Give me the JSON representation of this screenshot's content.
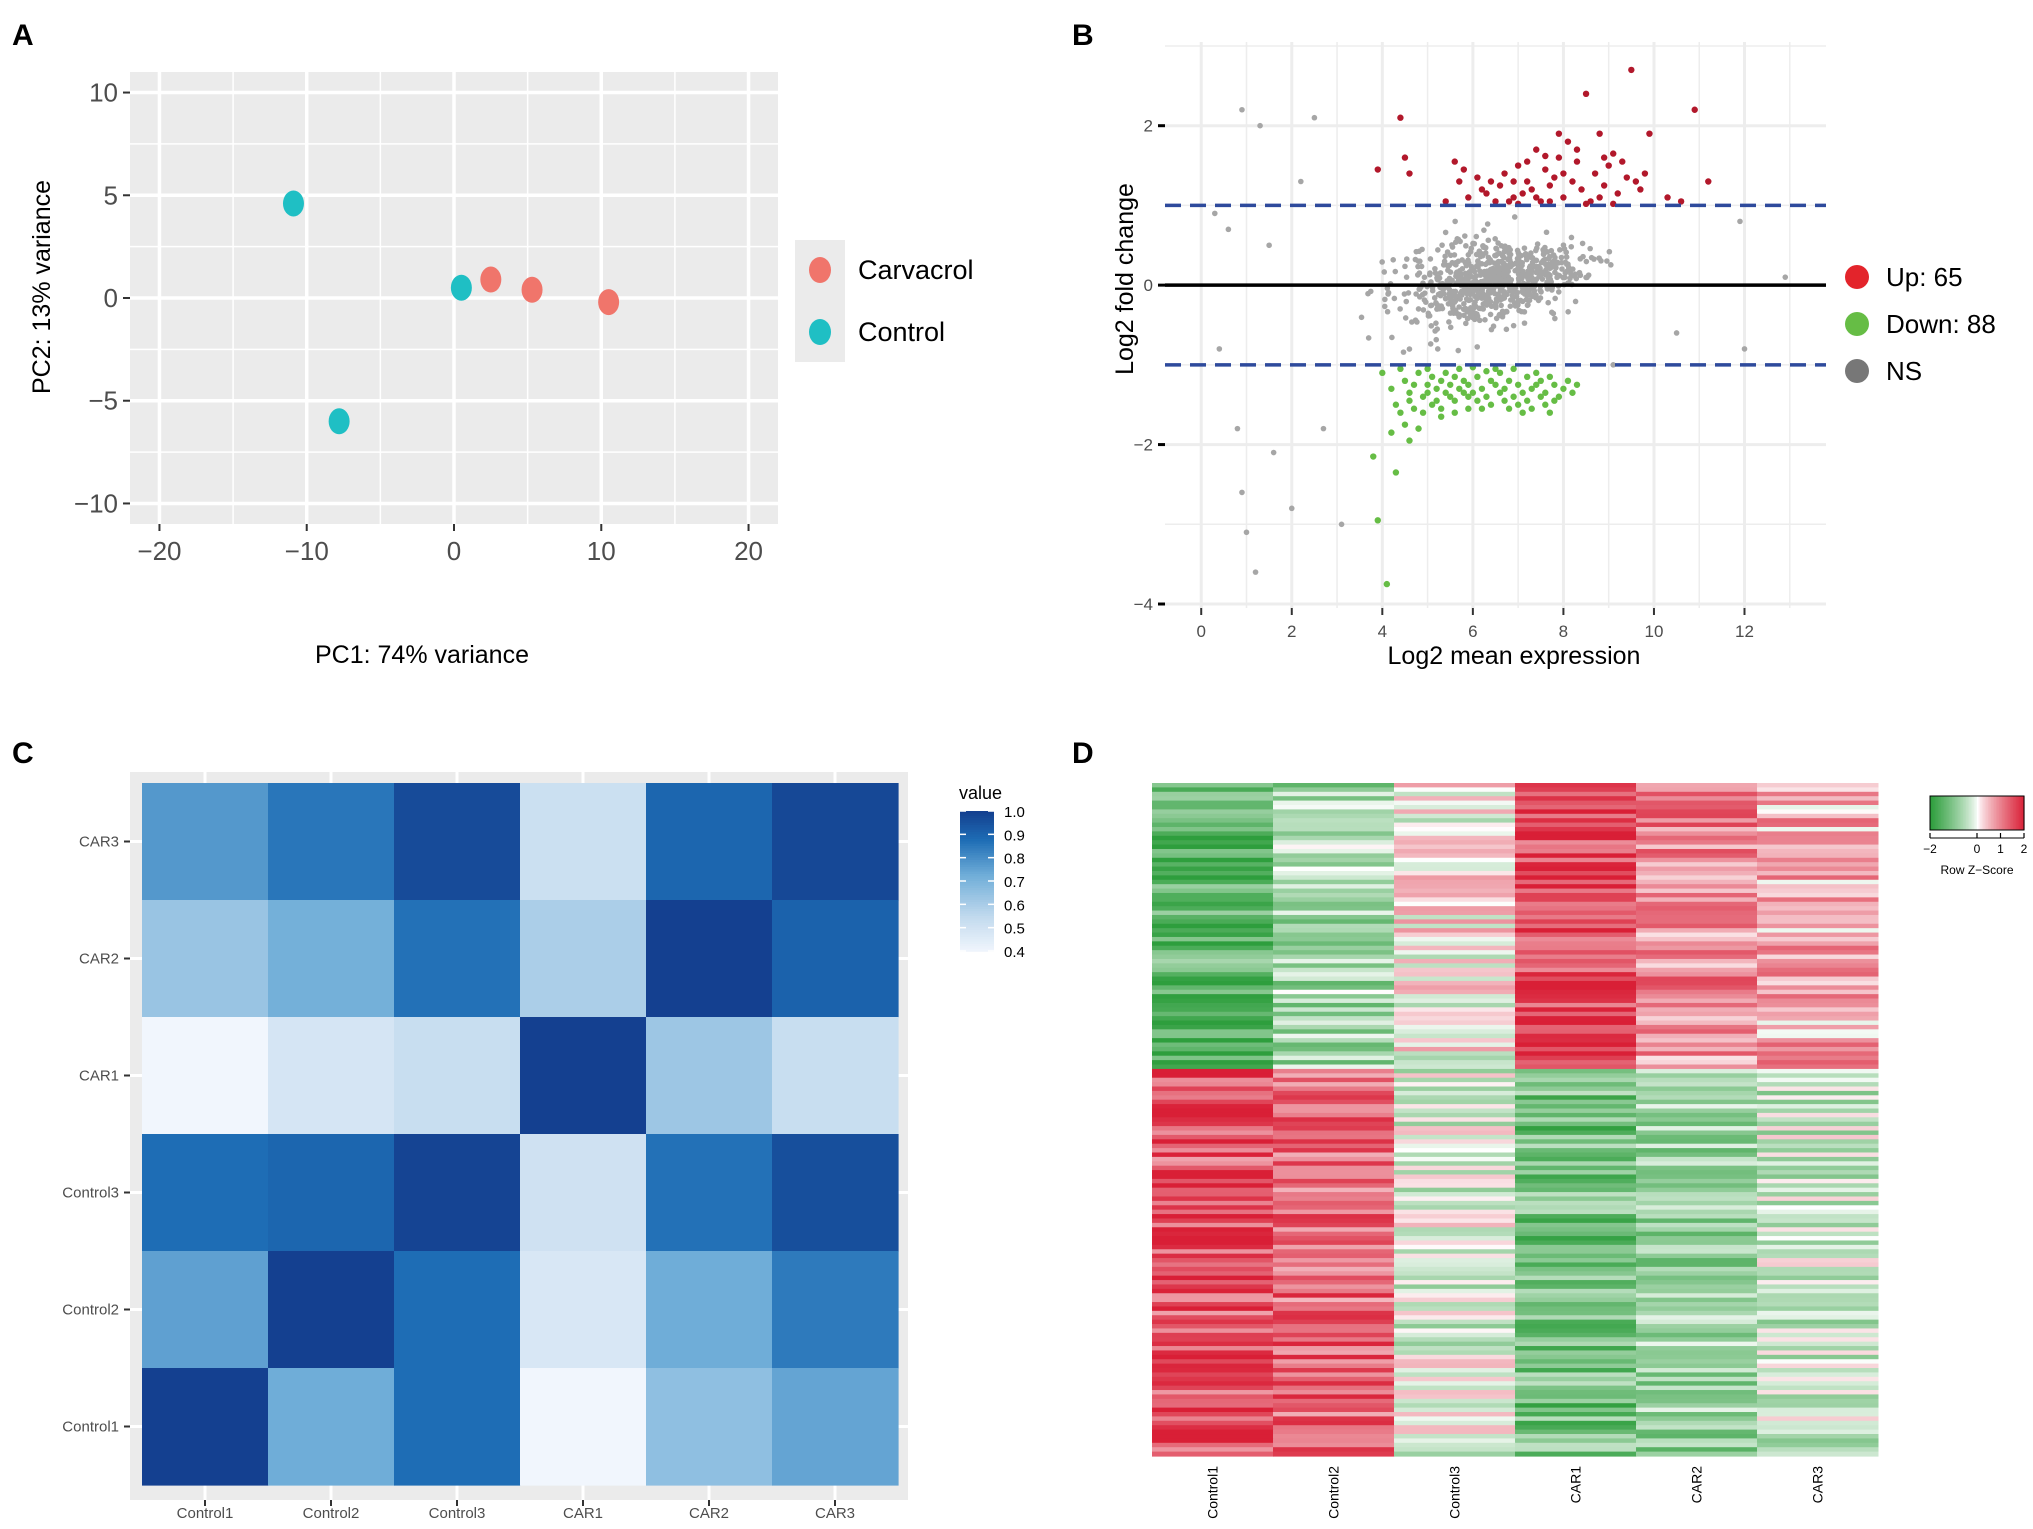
{
  "panel_labels": [
    "A",
    "B",
    "C",
    "D"
  ],
  "colors": {
    "carvacrol": "#F0756B",
    "control": "#1FBFC4",
    "up": "#B2182B",
    "up_legend": "#E3242B",
    "down": "#66BD45",
    "ns": "#A6A6A6",
    "ns_legend": "#777777",
    "threshold": "#2E4A9C",
    "panel_bg": "#EBEBEB",
    "heat_green": "#2E9E3D",
    "heat_red": "#D91F36"
  },
  "chart_data": [
    {
      "id": "A",
      "type": "scatter",
      "title": "",
      "xlabel": "PC1: 74% variance",
      "ylabel": "PC2: 13% variance",
      "xlim": [
        -22,
        22
      ],
      "ylim": [
        -11,
        11
      ],
      "xticks": [
        -20,
        -10,
        0,
        10,
        20
      ],
      "xtick_labels": [
        "−20",
        "−10",
        "0",
        "10",
        "20"
      ],
      "yticks": [
        10,
        5,
        0,
        -5,
        -10
      ],
      "ytick_labels": [
        "10",
        "5",
        "0",
        "−5",
        "−10"
      ],
      "legend": "right",
      "series": [
        {
          "name": "Carvacrol",
          "points": [
            [
              2.5,
              0.9
            ],
            [
              5.3,
              0.4
            ],
            [
              10.5,
              -0.2
            ]
          ]
        },
        {
          "name": "Control",
          "points": [
            [
              -10.9,
              4.6
            ],
            [
              -7.8,
              -6.0
            ],
            [
              0.5,
              0.5
            ]
          ]
        }
      ]
    },
    {
      "id": "B",
      "type": "scatter",
      "title": "",
      "xlabel": "Log2 mean expression",
      "ylabel": "Log2 fold change",
      "xlim": [
        -0.8,
        13.8
      ],
      "ylim": [
        -4.05,
        3.05
      ],
      "xticks": [
        0,
        2,
        4,
        6,
        8,
        10,
        12
      ],
      "xtick_labels": [
        "0",
        "2",
        "4",
        "6",
        "8",
        "10",
        "12"
      ],
      "yticks": [
        2,
        0,
        -2,
        -4
      ],
      "ytick_labels": [
        "2",
        "0",
        "−2",
        "−4"
      ],
      "thresholds": [
        1,
        -1
      ],
      "center_line": 0,
      "legend": "right",
      "legend_entries": [
        "Up: 65",
        "Down: 88",
        "NS"
      ],
      "up_count": 65,
      "down_count": 88,
      "series": [
        {
          "name": "Up",
          "points": [
            [
              9.5,
              2.7
            ],
            [
              8.5,
              2.4
            ],
            [
              10.9,
              2.2
            ],
            [
              4.4,
              2.1
            ],
            [
              9.9,
              1.9
            ],
            [
              8.8,
              1.9
            ],
            [
              7.4,
              1.7
            ],
            [
              8.1,
              1.8
            ],
            [
              7.9,
              1.6
            ],
            [
              9.1,
              1.65
            ],
            [
              7.0,
              1.5
            ],
            [
              7.6,
              1.45
            ],
            [
              8.3,
              1.55
            ],
            [
              4.5,
              1.6
            ],
            [
              5.6,
              1.55
            ],
            [
              9.4,
              1.35
            ],
            [
              8.7,
              1.4
            ],
            [
              7.2,
              1.3
            ],
            [
              7.8,
              1.35
            ],
            [
              8.9,
              1.25
            ],
            [
              6.6,
              1.25
            ],
            [
              5.7,
              1.3
            ],
            [
              6.2,
              1.2
            ],
            [
              7.1,
              1.15
            ],
            [
              8.4,
              1.2
            ],
            [
              9.6,
              1.3
            ],
            [
              11.2,
              1.3
            ],
            [
              4.6,
              1.4
            ],
            [
              3.9,
              1.45
            ],
            [
              6.9,
              1.1
            ],
            [
              7.5,
              1.05
            ],
            [
              8.0,
              1.1
            ],
            [
              8.6,
              1.05
            ],
            [
              9.2,
              1.15
            ],
            [
              10.3,
              1.1
            ],
            [
              6.8,
              1.05
            ],
            [
              7.3,
              1.2
            ],
            [
              5.9,
              1.1
            ],
            [
              8.2,
              1.3
            ],
            [
              9.0,
              1.5
            ],
            [
              7.7,
              1.25
            ],
            [
              6.5,
              1.05
            ],
            [
              7.0,
              1.02
            ],
            [
              8.5,
              1.02
            ],
            [
              10.6,
              1.05
            ],
            [
              5.4,
              1.05
            ],
            [
              9.8,
              1.4
            ],
            [
              6.1,
              1.35
            ],
            [
              7.9,
              1.9
            ],
            [
              8.3,
              1.7
            ],
            [
              7.6,
              1.62
            ],
            [
              6.7,
              1.4
            ],
            [
              9.3,
              1.55
            ],
            [
              8.8,
              1.1
            ],
            [
              7.4,
              1.1
            ],
            [
              6.3,
              1.15
            ],
            [
              5.8,
              1.45
            ],
            [
              9.7,
              1.2
            ],
            [
              7.2,
              1.55
            ],
            [
              8.0,
              1.4
            ],
            [
              8.9,
              1.6
            ],
            [
              6.9,
              1.3
            ],
            [
              7.7,
              1.05
            ],
            [
              9.1,
              1.02
            ],
            [
              6.4,
              1.3
            ]
          ]
        },
        {
          "name": "Down",
          "points": [
            [
              4.1,
              -3.75
            ],
            [
              3.9,
              -2.95
            ],
            [
              4.3,
              -2.35
            ],
            [
              3.8,
              -2.15
            ],
            [
              4.6,
              -1.95
            ],
            [
              4.2,
              -1.85
            ],
            [
              4.5,
              -1.75
            ],
            [
              4.8,
              -1.8
            ],
            [
              4.4,
              -1.6
            ],
            [
              4.7,
              -1.55
            ],
            [
              5.1,
              -1.5
            ],
            [
              5.3,
              -1.55
            ],
            [
              5.6,
              -1.6
            ],
            [
              5.9,
              -1.55
            ],
            [
              4.9,
              -1.4
            ],
            [
              5.2,
              -1.3
            ],
            [
              5.5,
              -1.25
            ],
            [
              5.8,
              -1.2
            ],
            [
              6.1,
              -1.15
            ],
            [
              6.4,
              -1.2
            ],
            [
              6.7,
              -1.3
            ],
            [
              7.0,
              -1.25
            ],
            [
              7.3,
              -1.3
            ],
            [
              7.6,
              -1.35
            ],
            [
              7.9,
              -1.4
            ],
            [
              8.2,
              -1.35
            ],
            [
              4.5,
              -1.2
            ],
            [
              4.8,
              -1.1
            ],
            [
              5.0,
              -1.05
            ],
            [
              5.4,
              -1.1
            ],
            [
              5.7,
              -1.05
            ],
            [
              6.0,
              -1.03
            ],
            [
              6.3,
              -1.08
            ],
            [
              6.6,
              -1.1
            ],
            [
              6.9,
              -1.05
            ],
            [
              7.2,
              -1.15
            ],
            [
              7.5,
              -1.2
            ],
            [
              7.8,
              -1.25
            ],
            [
              8.1,
              -1.2
            ],
            [
              4.3,
              -1.5
            ],
            [
              4.6,
              -1.35
            ],
            [
              5.0,
              -1.25
            ],
            [
              5.3,
              -1.2
            ],
            [
              5.6,
              -1.15
            ],
            [
              5.9,
              -1.25
            ],
            [
              6.2,
              -1.3
            ],
            [
              6.5,
              -1.25
            ],
            [
              6.8,
              -1.2
            ],
            [
              7.1,
              -1.35
            ],
            [
              7.4,
              -1.25
            ],
            [
              7.7,
              -1.15
            ],
            [
              8.0,
              -1.3
            ],
            [
              4.4,
              -1.05
            ],
            [
              4.7,
              -1.25
            ],
            [
              5.1,
              -1.15
            ],
            [
              5.4,
              -1.35
            ],
            [
              5.7,
              -1.3
            ],
            [
              6.0,
              -1.35
            ],
            [
              6.3,
              -1.4
            ],
            [
              6.6,
              -1.35
            ],
            [
              6.9,
              -1.4
            ],
            [
              7.2,
              -1.45
            ],
            [
              7.5,
              -1.4
            ],
            [
              7.8,
              -1.45
            ],
            [
              8.3,
              -1.25
            ],
            [
              4.2,
              -1.3
            ],
            [
              4.9,
              -1.6
            ],
            [
              5.2,
              -1.45
            ],
            [
              5.5,
              -1.4
            ],
            [
              5.8,
              -1.35
            ],
            [
              6.1,
              -1.45
            ],
            [
              6.4,
              -1.5
            ],
            [
              6.7,
              -1.45
            ],
            [
              7.0,
              -1.5
            ],
            [
              7.3,
              -1.55
            ],
            [
              7.6,
              -1.5
            ],
            [
              4.0,
              -1.1
            ],
            [
              4.6,
              -1.45
            ],
            [
              5.0,
              -1.35
            ],
            [
              5.3,
              -1.65
            ],
            [
              5.6,
              -1.45
            ],
            [
              5.9,
              -1.4
            ],
            [
              6.2,
              -1.55
            ],
            [
              6.5,
              -1.05
            ],
            [
              6.8,
              -1.55
            ],
            [
              7.1,
              -1.6
            ],
            [
              7.4,
              -1.1
            ],
            [
              7.7,
              -1.6
            ]
          ]
        }
      ]
    },
    {
      "id": "C",
      "type": "heatmap",
      "title": "",
      "xlabel": "",
      "ylabel": "",
      "x_labels": [
        "Control1",
        "Control2",
        "Control3",
        "CAR1",
        "CAR2",
        "CAR3"
      ],
      "y_labels": [
        "CAR3",
        "CAR2",
        "CAR1",
        "Control3",
        "Control2",
        "Control1"
      ],
      "values": [
        [
          0.78,
          0.86,
          0.97,
          0.52,
          0.9,
          0.98
        ],
        [
          0.64,
          0.72,
          0.87,
          0.6,
          1.0,
          0.91
        ],
        [
          0.4,
          0.49,
          0.53,
          1.0,
          0.63,
          0.53
        ],
        [
          0.88,
          0.9,
          0.99,
          0.51,
          0.87,
          0.96
        ],
        [
          0.76,
          1.0,
          0.88,
          0.48,
          0.73,
          0.85
        ],
        [
          1.0,
          0.73,
          0.88,
          0.4,
          0.66,
          0.75
        ]
      ],
      "legend_title": "value",
      "colorbar_ticks": [
        1.0,
        0.9,
        0.8,
        0.7,
        0.6,
        0.5,
        0.4
      ],
      "colorbar_tick_labels": [
        "1.0",
        "0.9",
        "0.8",
        "0.7",
        "0.6",
        "0.5",
        "0.4"
      ],
      "vmin": 0.4,
      "vmax": 1.0
    },
    {
      "id": "D",
      "type": "heatmap",
      "title": "",
      "columns": [
        "Control1",
        "Control2",
        "Control3",
        "CAR1",
        "CAR2",
        "CAR3"
      ],
      "legend_title": "Row Z−Score",
      "colorbar_ticks": [
        -2,
        0,
        1,
        2
      ],
      "colorbar_tick_labels": [
        "−2",
        "0",
        "1",
        "2"
      ],
      "zlim": [
        -2,
        2
      ],
      "n_rows": 153,
      "up_block_rows": 65,
      "column_mean_z_upper_block": [
        -1.4,
        -0.7,
        0.05,
        1.6,
        0.9,
        0.6
      ],
      "column_mean_z_lower_block": [
        1.4,
        1.2,
        -0.2,
        -1.2,
        -0.8,
        -0.4
      ]
    }
  ]
}
